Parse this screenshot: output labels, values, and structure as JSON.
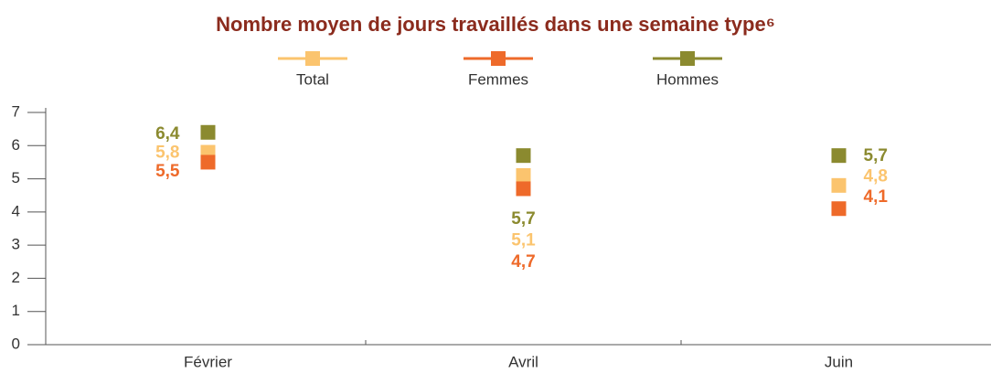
{
  "chart_data": {
    "type": "line",
    "title": "Nombre moyen de jours travaillés dans une semaine type⁶",
    "categories": [
      "Février",
      "Avril",
      "Juin"
    ],
    "series": [
      {
        "name": "Total",
        "color": "#fbc46e",
        "values": [
          5.8,
          5.1,
          4.8
        ],
        "value_labels": [
          "5,8",
          "5,1",
          "4,8"
        ]
      },
      {
        "name": "Femmes",
        "color": "#ee6a2a",
        "values": [
          5.5,
          4.7,
          4.1
        ],
        "value_labels": [
          "5,5",
          "4,7",
          "4,1"
        ]
      },
      {
        "name": "Hommes",
        "color": "#8b8a2f",
        "values": [
          6.4,
          5.7,
          5.7
        ],
        "value_labels": [
          "6,4",
          "5,7",
          "5,7"
        ]
      }
    ],
    "ylim": [
      0,
      7
    ],
    "yticks": [
      0,
      1,
      2,
      3,
      4,
      5,
      6,
      7
    ],
    "grid": false,
    "legend": "top"
  }
}
